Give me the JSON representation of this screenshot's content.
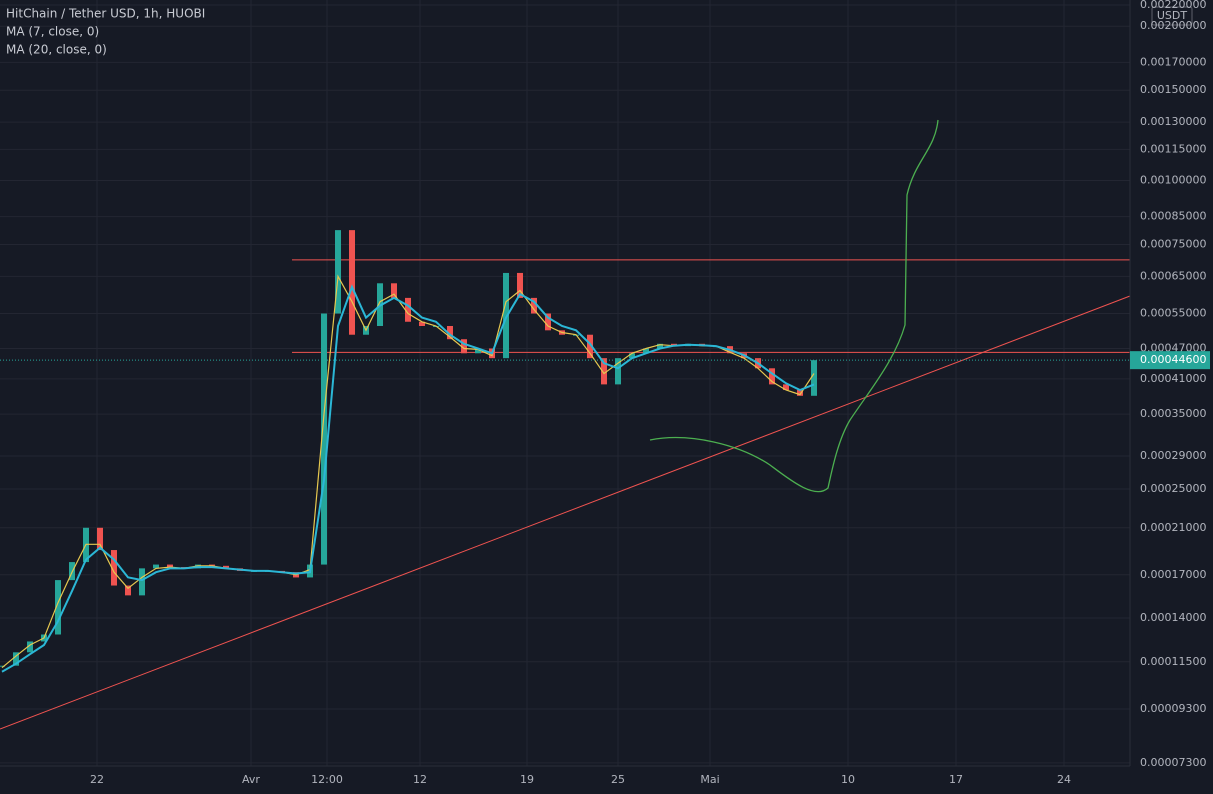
{
  "chart_data": {
    "type": "candlestick",
    "title": "HitChain / Tether USD, 1h, HUOBI",
    "currency": "USDT",
    "log_scale": true,
    "grid": true,
    "up_color": "#26a69a",
    "down_color": "#ef5350",
    "values": [
      0.000113,
      0.00012,
      0.000126,
      0.00013,
      0.000166,
      0.00018,
      0.00021,
      0.00019,
      0.000162,
      0.000155,
      0.000175,
      0.000178,
      0.000176,
      0.000175,
      0.000178,
      0.000177,
      0.000175,
      0.000173,
      0.000173,
      0.000173,
      0.000172,
      0.000168,
      0.000178,
      0.00055,
      0.0008,
      0.0005,
      0.00052,
      0.00063,
      0.00059,
      0.00053,
      0.00052,
      0.00052,
      0.00049,
      0.00046,
      0.00047,
      0.00045,
      0.00066,
      0.00059,
      0.00055,
      0.00051,
      0.0005,
      0.0005,
      0.00045,
      0.0004,
      0.00045,
      0.00046,
      0.00047,
      0.00048,
      0.000475,
      0.00048,
      0.000475,
      0.000475,
      0.00046,
      0.00045,
      0.00043,
      0.0004,
      0.00039,
      0.00038,
      0.000446
    ],
    "series": [
      {
        "name": "MA (7, close, 0)",
        "color": "#e6c84f",
        "values": [
          0.000112,
          0.000118,
          0.000124,
          0.000128,
          0.00015,
          0.000172,
          0.000195,
          0.000195,
          0.000172,
          0.00016,
          0.000168,
          0.000175,
          0.000176,
          0.000175,
          0.000177,
          0.000177,
          0.000175,
          0.000174,
          0.000173,
          0.000173,
          0.000172,
          0.00017,
          0.000174,
          0.00035,
          0.00065,
          0.00058,
          0.00051,
          0.00058,
          0.0006,
          0.00055,
          0.00053,
          0.00052,
          0.000495,
          0.00047,
          0.000468,
          0.000455,
          0.00058,
          0.00061,
          0.00056,
          0.00052,
          0.000505,
          0.0005,
          0.00046,
          0.00042,
          0.00044,
          0.00046,
          0.00047,
          0.000478,
          0.000476,
          0.000478,
          0.000476,
          0.000475,
          0.000462,
          0.00045,
          0.00043,
          0.000405,
          0.00039,
          0.000382,
          0.00042
        ]
      },
      {
        "name": "MA (20, close, 0)",
        "color": "#2bb7d6",
        "values": [
          0.00011,
          0.000114,
          0.000119,
          0.000124,
          0.000138,
          0.000158,
          0.000182,
          0.000192,
          0.000182,
          0.000168,
          0.000166,
          0.000172,
          0.000175,
          0.000175,
          0.000176,
          0.000176,
          0.000175,
          0.000174,
          0.000173,
          0.000173,
          0.000172,
          0.000171,
          0.000172,
          0.00026,
          0.00052,
          0.00062,
          0.00054,
          0.00057,
          0.00059,
          0.00057,
          0.00054,
          0.00053,
          0.0005,
          0.00048,
          0.00047,
          0.00046,
          0.00054,
          0.0006,
          0.00058,
          0.00054,
          0.00052,
          0.00051,
          0.00048,
          0.00044,
          0.00043,
          0.00045,
          0.00046,
          0.00047,
          0.000476,
          0.000478,
          0.000477,
          0.000475,
          0.000467,
          0.000456,
          0.00044,
          0.00042,
          0.000402,
          0.00039,
          0.0004
        ]
      }
    ],
    "last_price": {
      "value": 0.000446,
      "label": "0.00044600"
    },
    "horizontal_lines": [
      0.0007,
      0.000462
    ],
    "trend_line": [
      8.5e-05,
      0.000595
    ],
    "x_labels": [
      "22",
      "Avr",
      "12:00",
      "12",
      "19",
      "25",
      "Mai",
      "10",
      "17",
      "24"
    ],
    "ylim": [
      7.2e-05,
      0.00225
    ],
    "yticks": [
      {
        "value": 0.0022,
        "label": "0.00220000"
      },
      {
        "value": 0.002,
        "label": "0.00200000"
      },
      {
        "value": 0.0017,
        "label": "0.00170000"
      },
      {
        "value": 0.0015,
        "label": "0.00150000"
      },
      {
        "value": 0.0013,
        "label": "0.00130000"
      },
      {
        "value": 0.00115,
        "label": "0.00115000"
      },
      {
        "value": 0.001,
        "label": "0.00100000"
      },
      {
        "value": 0.00085,
        "label": "0.00085000"
      },
      {
        "value": 0.00075,
        "label": "0.00075000"
      },
      {
        "value": 0.00065,
        "label": "0.00065000"
      },
      {
        "value": 0.00055,
        "label": "0.00055000"
      },
      {
        "value": 0.00047,
        "label": "0.00047000"
      },
      {
        "value": 0.00041,
        "label": "0.00041000"
      },
      {
        "value": 0.00035,
        "label": "0.00035000"
      },
      {
        "value": 0.00029,
        "label": "0.00029000"
      },
      {
        "value": 0.00025,
        "label": "0.00025000"
      },
      {
        "value": 0.00021,
        "label": "0.00021000"
      },
      {
        "value": 0.00017,
        "label": "0.00017000"
      },
      {
        "value": 0.00014,
        "label": "0.00014000"
      },
      {
        "value": 0.000115,
        "label": "0.00011500"
      },
      {
        "value": 9.3e-05,
        "label": "0.00009300"
      },
      {
        "value": 7.3e-05,
        "label": "0.00007300"
      }
    ]
  }
}
